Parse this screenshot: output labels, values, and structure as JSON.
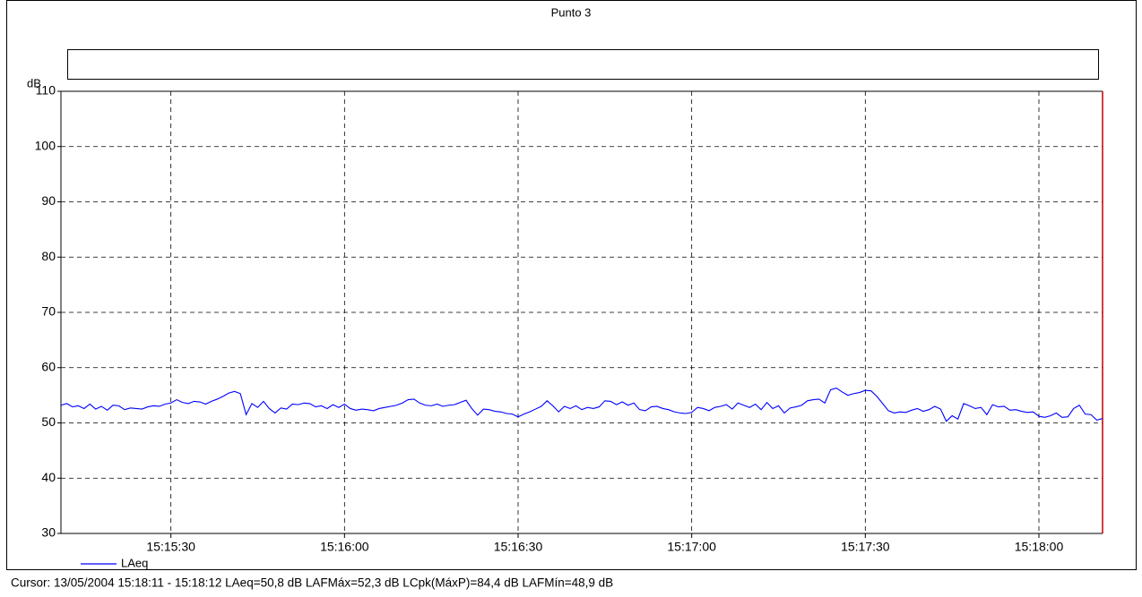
{
  "chart_data": {
    "type": "line",
    "title": "Punto 3",
    "ylabel": "dB",
    "cursor_text": "Cursor: 13/05/2004 15:18:11 - 15:18:12  LAeq=50,8 dB  LAFMáx=52,3 dB  LCpk(MáxP)=84,4 dB  LAFMín=48,9 dB",
    "x": [
      "15:15:11",
      "15:15:12",
      "15:15:13",
      "15:15:14",
      "15:15:15",
      "15:15:16",
      "15:15:17",
      "15:15:18",
      "15:15:19",
      "15:15:20",
      "15:15:21",
      "15:15:22",
      "15:15:23",
      "15:15:24",
      "15:15:25",
      "15:15:26",
      "15:15:27",
      "15:15:28",
      "15:15:29",
      "15:15:30",
      "15:15:31",
      "15:15:32",
      "15:15:33",
      "15:15:34",
      "15:15:35",
      "15:15:36",
      "15:15:37",
      "15:15:38",
      "15:15:39",
      "15:15:40",
      "15:15:41",
      "15:15:42",
      "15:15:43",
      "15:15:44",
      "15:15:45",
      "15:15:46",
      "15:15:47",
      "15:15:48",
      "15:15:49",
      "15:15:50",
      "15:15:51",
      "15:15:52",
      "15:15:53",
      "15:15:54",
      "15:15:55",
      "15:15:56",
      "15:15:57",
      "15:15:58",
      "15:15:59",
      "15:16:00",
      "15:16:01",
      "15:16:02",
      "15:16:03",
      "15:16:04",
      "15:16:05",
      "15:16:06",
      "15:16:07",
      "15:16:08",
      "15:16:09",
      "15:16:10",
      "15:16:11",
      "15:16:12",
      "15:16:13",
      "15:16:14",
      "15:16:15",
      "15:16:16",
      "15:16:17",
      "15:16:18",
      "15:16:19",
      "15:16:20",
      "15:16:21",
      "15:16:22",
      "15:16:23",
      "15:16:24",
      "15:16:25",
      "15:16:26",
      "15:16:27",
      "15:16:28",
      "15:16:29",
      "15:16:30",
      "15:16:31",
      "15:16:32",
      "15:16:33",
      "15:16:34",
      "15:16:35",
      "15:16:36",
      "15:16:37",
      "15:16:38",
      "15:16:39",
      "15:16:40",
      "15:16:41",
      "15:16:42",
      "15:16:43",
      "15:16:44",
      "15:16:45",
      "15:16:46",
      "15:16:47",
      "15:16:48",
      "15:16:49",
      "15:16:50",
      "15:16:51",
      "15:16:52",
      "15:16:53",
      "15:16:54",
      "15:16:55",
      "15:16:56",
      "15:16:57",
      "15:16:58",
      "15:16:59",
      "15:17:00",
      "15:17:01",
      "15:17:02",
      "15:17:03",
      "15:17:04",
      "15:17:05",
      "15:17:06",
      "15:17:07",
      "15:17:08",
      "15:17:09",
      "15:17:10",
      "15:17:11",
      "15:17:12",
      "15:17:13",
      "15:17:14",
      "15:17:15",
      "15:17:16",
      "15:17:17",
      "15:17:18",
      "15:17:19",
      "15:17:20",
      "15:17:21",
      "15:17:22",
      "15:17:23",
      "15:17:24",
      "15:17:25",
      "15:17:26",
      "15:17:27",
      "15:17:28",
      "15:17:29",
      "15:17:30",
      "15:17:31",
      "15:17:32",
      "15:17:33",
      "15:17:34",
      "15:17:35",
      "15:17:36",
      "15:17:37",
      "15:17:38",
      "15:17:39",
      "15:17:40",
      "15:17:41",
      "15:17:42",
      "15:17:43",
      "15:17:44",
      "15:17:45",
      "15:17:46",
      "15:17:47",
      "15:17:48",
      "15:17:49",
      "15:17:50",
      "15:17:51",
      "15:17:52",
      "15:17:53",
      "15:17:54",
      "15:17:55",
      "15:17:56",
      "15:17:57",
      "15:17:58",
      "15:17:59",
      "15:18:00",
      "15:18:01",
      "15:18:02",
      "15:18:03",
      "15:18:04",
      "15:18:05",
      "15:18:06",
      "15:18:07",
      "15:18:08",
      "15:18:09",
      "15:18:10",
      "15:18:11"
    ],
    "series": [
      {
        "name": "LAeq",
        "color": "#0000ff",
        "values": [
          53.2,
          53.5,
          52.9,
          53.1,
          52.6,
          53.4,
          52.5,
          53.0,
          52.3,
          53.2,
          53.1,
          52.4,
          52.7,
          52.6,
          52.5,
          52.9,
          53.1,
          53.0,
          53.4,
          53.6,
          54.2,
          53.7,
          53.5,
          53.9,
          53.8,
          53.4,
          53.9,
          54.3,
          54.8,
          55.4,
          55.7,
          55.3,
          51.5,
          53.5,
          52.8,
          53.9,
          52.6,
          51.8,
          52.7,
          52.5,
          53.4,
          53.3,
          53.6,
          53.5,
          52.9,
          53.1,
          52.6,
          53.3,
          52.8,
          53.4,
          52.6,
          52.3,
          52.5,
          52.4,
          52.2,
          52.6,
          52.8,
          53.0,
          53.2,
          53.6,
          54.2,
          54.3,
          53.6,
          53.2,
          53.1,
          53.4,
          53.0,
          53.2,
          53.3,
          53.7,
          54.1,
          52.6,
          51.4,
          52.5,
          52.4,
          52.1,
          52.0,
          51.7,
          51.6,
          51.1,
          51.6,
          52.0,
          52.5,
          53.0,
          54.0,
          53.1,
          52.0,
          53.0,
          52.6,
          53.1,
          52.4,
          52.8,
          52.6,
          52.9,
          54.0,
          53.9,
          53.3,
          53.8,
          53.2,
          53.6,
          52.4,
          52.2,
          52.9,
          53.0,
          52.6,
          52.4,
          52.0,
          51.8,
          51.7,
          51.9,
          52.8,
          52.6,
          52.2,
          52.8,
          53.0,
          53.3,
          52.5,
          53.6,
          53.2,
          52.8,
          53.4,
          52.4,
          53.7,
          52.6,
          53.1,
          51.8,
          52.7,
          52.9,
          53.2,
          54.0,
          54.2,
          54.3,
          53.6,
          56.0,
          56.3,
          55.6,
          55.0,
          55.3,
          55.5,
          55.9,
          55.8,
          54.8,
          53.5,
          52.2,
          51.8,
          52.0,
          51.9,
          52.3,
          52.6,
          52.1,
          52.4,
          53.0,
          52.5,
          50.3,
          51.3,
          50.7,
          53.5,
          53.1,
          52.6,
          52.8,
          51.5,
          53.3,
          52.9,
          53.0,
          52.3,
          52.4,
          52.1,
          51.9,
          52.0,
          51.2,
          51.0,
          51.3,
          51.8,
          51.0,
          51.1,
          52.6,
          53.2,
          51.6,
          51.5,
          50.5,
          50.8
        ]
      }
    ],
    "xlim": [
      "15:15:11",
      "15:18:11"
    ],
    "xticks": [
      "15:15:30",
      "15:16:00",
      "15:16:30",
      "15:17:00",
      "15:17:30",
      "15:18:00"
    ],
    "ylim": [
      30,
      110
    ],
    "yticks": [
      30,
      40,
      50,
      60,
      70,
      80,
      90,
      100,
      110
    ],
    "grid": true
  }
}
